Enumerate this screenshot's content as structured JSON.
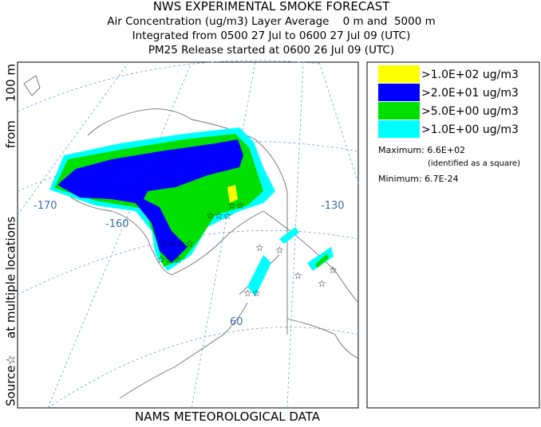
{
  "header": {
    "title": "NWS EXPERIMENTAL SMOKE FORECAST",
    "lines": [
      "Air Concentration (ug/m3) Layer Average    0 m and  5000 m",
      "Integrated from 0500 27 Jul to 0600 27 Jul 09 (UTC)",
      "PM25 Release started at 0600 26 Jul 09 (UTC)"
    ]
  },
  "side_label": {
    "source": "Source☆",
    "locations": "at multiple locations",
    "from": "from",
    "height": "100 m"
  },
  "footer": "NAMS METEOROLOGICAL DATA",
  "legend": [
    {
      "label": ">1.0E+02 ug/m3",
      "color": "#ffff00"
    },
    {
      "label": ">2.0E+01 ug/m3",
      "color": "#0000ff"
    },
    {
      "label": ">5.0E+00 ug/m3",
      "color": "#00e000"
    },
    {
      "label": ">1.0E+00 ug/m3",
      "color": "#00ffff"
    }
  ],
  "stats": {
    "maximum": "Maximum: 6.6E+02",
    "maximum_note": "(identified as a square)",
    "minimum": "Minimum: 6.7E-24"
  },
  "map_labels": [
    "-170",
    "-160",
    "-130",
    "60"
  ]
}
